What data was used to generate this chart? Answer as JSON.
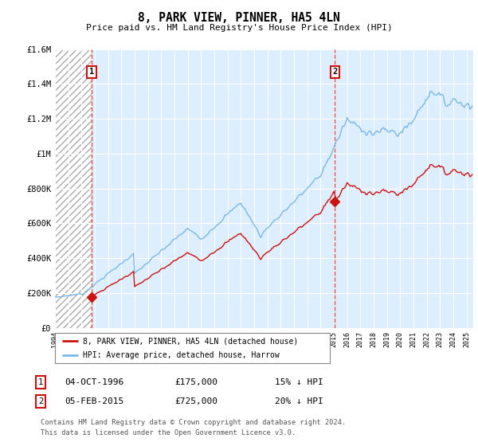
{
  "title": "8, PARK VIEW, PINNER, HA5 4LN",
  "subtitle": "Price paid vs. HM Land Registry's House Price Index (HPI)",
  "ylim": [
    0,
    1600000
  ],
  "xlim_start": 1994.0,
  "xlim_end": 2025.5,
  "yticks": [
    0,
    200000,
    400000,
    600000,
    800000,
    1000000,
    1200000,
    1400000,
    1600000
  ],
  "ytick_labels": [
    "£0",
    "£200K",
    "£400K",
    "£600K",
    "£800K",
    "£1M",
    "£1.2M",
    "£1.4M",
    "£1.6M"
  ],
  "sale1_date": 1996.75,
  "sale1_price": 175000,
  "sale1_label": "1",
  "sale2_date": 2015.08,
  "sale2_price": 725000,
  "sale2_label": "2",
  "hpi_color": "#7ab8e8",
  "price_color": "#cc1111",
  "vline_color": "#e05050",
  "annotation_box_color": "#cc1111",
  "plot_bg_color": "#ddeeff",
  "hatch_bg_color": "#ffffff",
  "legend_label_price": "8, PARK VIEW, PINNER, HA5 4LN (detached house)",
  "legend_label_hpi": "HPI: Average price, detached house, Harrow",
  "table_row1": [
    "1",
    "04-OCT-1996",
    "£175,000",
    "15% ↓ HPI"
  ],
  "table_row2": [
    "2",
    "05-FEB-2015",
    "£725,000",
    "20% ↓ HPI"
  ],
  "footnote1": "Contains HM Land Registry data © Crown copyright and database right 2024.",
  "footnote2": "This data is licensed under the Open Government Licence v3.0.",
  "bg_color": "#ffffff"
}
